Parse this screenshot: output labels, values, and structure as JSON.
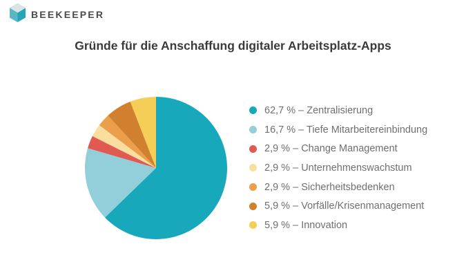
{
  "header": {
    "brand": "BEEKEEPER",
    "logo_colors": {
      "top_face": "#d9e4e5",
      "left_face": "#59b7c6",
      "right_face": "#28a4b8"
    }
  },
  "chart_data": {
    "type": "pie",
    "title": "Gründe für die Anschaffung digitaler Arbeitsplatz-Apps",
    "legend_position": "right",
    "start_angle_deg": 0,
    "direction": "clockwise",
    "slices": [
      {
        "name": "Zentralisierung",
        "value": 62.7,
        "label": "62,7 % – Zentralisierung",
        "color": "#17a8bb"
      },
      {
        "name": "Tiefe Mitarbeitereinbindung",
        "value": 16.7,
        "label": "16,7 % – Tiefe Mitarbeitereinbindung",
        "color": "#93cedb"
      },
      {
        "name": "Change Management",
        "value": 2.9,
        "label": "2,9 % – Change Management",
        "color": "#e05a52"
      },
      {
        "name": "Unternehmenswachstum",
        "value": 2.9,
        "label": "2,9 % – Unternehmenswachstum",
        "color": "#f9dea0"
      },
      {
        "name": "Sicherheitsbedenken",
        "value": 2.9,
        "label": "2,9 % – Sicherheitsbedenken",
        "color": "#ec9f4a"
      },
      {
        "name": "Vorfälle/Krisenmanagement",
        "value": 5.9,
        "label": "5,9 % – Vorfälle/Krisenmanagement",
        "color": "#d0802e"
      },
      {
        "name": "Innovation",
        "value": 5.9,
        "label": "5,9 % – Innovation",
        "color": "#f5ce57"
      }
    ]
  }
}
